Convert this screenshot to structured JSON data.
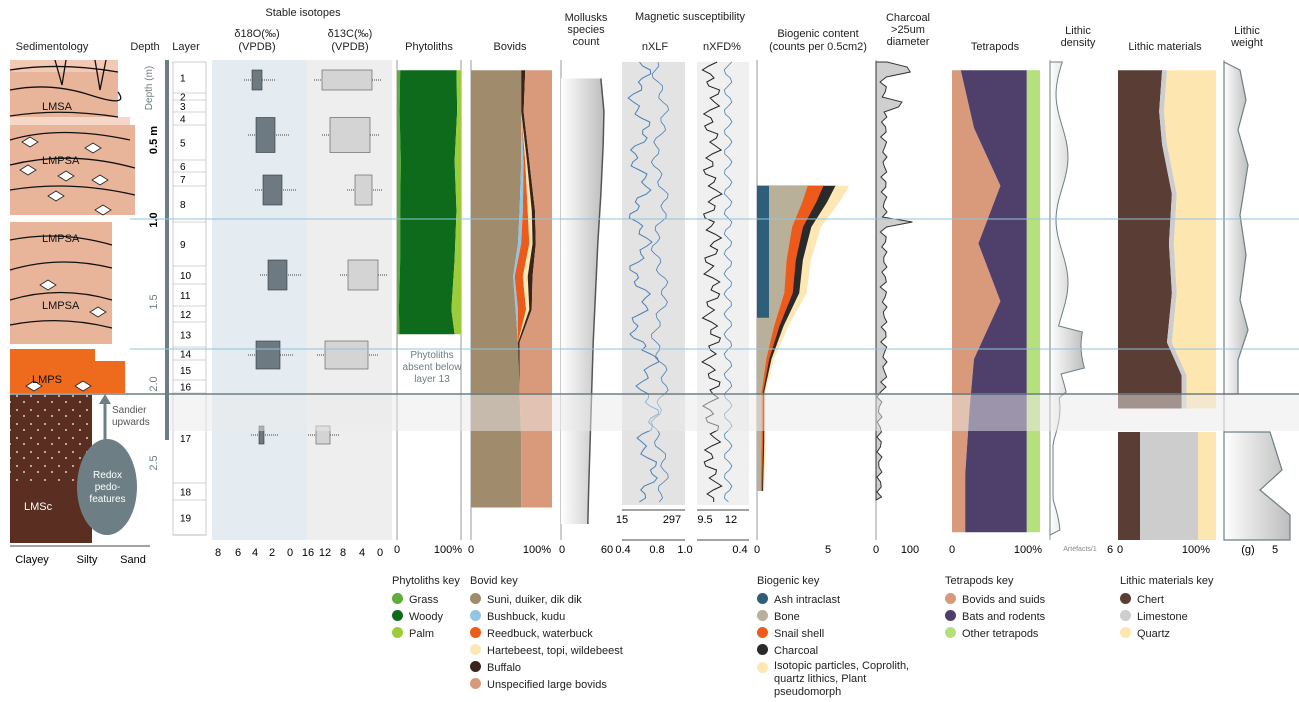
{
  "colors": {
    "grass": "#5fae3a",
    "woody": "#0e6b1c",
    "palm": "#9ccc3a",
    "suni": "#a08b6d",
    "bushbuck": "#8fc6e3",
    "reedbuck": "#ee5a19",
    "hartebeest": "#fde7b4",
    "buffalo": "#3b241a",
    "unspecified": "#d99a7c",
    "ash": "#2e5f7a",
    "bone": "#b9b09a",
    "snail": "#ee5a19",
    "charcoal": "#2a2a2a",
    "isotopic": "#fde7b4",
    "bovids_suids": "#d99a7c",
    "bats": "#4f3f6b",
    "other_tetra": "#b6e07c",
    "chert": "#5a3d34",
    "limestone": "#cdcdcd",
    "quartz": "#fde6b0",
    "sediment_pink": "#e8b49a",
    "sediment_orange": "#ee6a1c",
    "sediment_brown": "#5a2e20"
  },
  "headers": {
    "sedimentology": "Sedimentology",
    "depth": "Depth",
    "layer": "Layer",
    "stable_isotopes": "Stable isotopes",
    "d18o": "δ18O(‰)",
    "d18o_sub": "(VPDB)",
    "d13c": "δ13C(‰)",
    "d13c_sub": "(VPDB)",
    "phytoliths": "Phytoliths",
    "bovids": "Bovids",
    "mollusks": "Mollusks species count",
    "magnetic": "Magnetic susceptibility",
    "nxlf": "nXLF",
    "nxfd": "nXFD%",
    "biogenic": "Biogenic content",
    "biogenic_sub": "(counts per 0.5cm2)",
    "charcoal": "Charcoal >25um diameter",
    "tetrapods": "Tetrapods",
    "lithic_density": "Lithic density",
    "lithic_materials": "Lithic materials",
    "lithic_weight": "Lithic weight"
  },
  "sedimentology": {
    "units": [
      "LMSA",
      "LMPSA",
      "LMPSA",
      "LMPSA",
      "LMPS",
      "LMSc"
    ],
    "sandier": "Sandier upwards",
    "redox": "Redox pedo-features",
    "axis": [
      "Clayey",
      "Silty",
      "Sand"
    ]
  },
  "depth_axis": {
    "label": "Depth (m)",
    "ticks": [
      "0.5 m",
      "1.0",
      "1.5",
      "2.0",
      "2.5"
    ]
  },
  "layers": [
    "1",
    "2",
    "3",
    "4",
    "5",
    "6",
    "7",
    "8",
    "9",
    "10",
    "11",
    "12",
    "13",
    "14",
    "15",
    "16",
    "17",
    "18",
    "19"
  ],
  "phytolith_note": "Phytoliths absent below layer 13",
  "axis_labels": {
    "d18o": [
      "8",
      "6",
      "4",
      "2",
      "0"
    ],
    "d13c": [
      "16",
      "12",
      "8",
      "4",
      "0"
    ],
    "phyto": [
      "0",
      "100%"
    ],
    "bovids": [
      "0",
      "100%"
    ],
    "mollusks": [
      "0",
      "60"
    ],
    "nxlf_top": [
      "15",
      "297"
    ],
    "nxlf_bottom": [
      "0.4",
      "0.8",
      "1.0"
    ],
    "nxfd_top": [
      "9.5",
      "12"
    ],
    "nxfd_bottom": [
      "0.4"
    ],
    "biogenic": [
      "0",
      "5"
    ],
    "charcoal": [
      "0",
      "100"
    ],
    "tetrapods": [
      "0",
      "100%"
    ],
    "lithic_density": [
      "Artefacts/1",
      "6"
    ],
    "lithic_materials": [
      "0",
      "100%"
    ],
    "lithic_weight": [
      "(g)",
      "5"
    ]
  },
  "keys": {
    "phyto_key": {
      "title": "Phytoliths key",
      "items": [
        "Grass",
        "Woody",
        "Palm"
      ]
    },
    "bovid_key": {
      "title": "Bovid key",
      "items": [
        "Suni, duiker, dik dik",
        "Bushbuck, kudu",
        "Reedbuck, waterbuck",
        "Hartebeest, topi, wildebeest",
        "Buffalo",
        "Unspecified large bovids"
      ]
    },
    "biogenic_key": {
      "title": "Biogenic key",
      "items": [
        "Ash intraclast",
        "Bone",
        "Snail shell",
        "Charcoal",
        "Isotopic particles, Coprolith, quartz lithics, Plant pseudomorph"
      ]
    },
    "tetrapods_key": {
      "title": "Tetrapods key",
      "items": [
        "Bovids and suids",
        "Bats and rodents",
        "Other tetrapods"
      ]
    },
    "lithic_key": {
      "title": "Lithic materials key",
      "items": [
        "Chert",
        "Limestone",
        "Quartz"
      ]
    }
  },
  "chart_data": [
    {
      "type": "area",
      "title": "Phytoliths",
      "depth_m": [
        0.05,
        0.3,
        0.6,
        0.9,
        1.2,
        1.5,
        1.65
      ],
      "series": [
        {
          "name": "Grass",
          "values": [
            5,
            4,
            6,
            5,
            5,
            3,
            4
          ]
        },
        {
          "name": "Woody",
          "values": [
            88,
            90,
            84,
            88,
            85,
            82,
            86
          ]
        },
        {
          "name": "Palm",
          "values": [
            7,
            6,
            10,
            7,
            10,
            15,
            10
          ]
        }
      ],
      "xlim": [
        0,
        100
      ]
    },
    {
      "type": "area",
      "title": "Bovids",
      "depth_m": [
        0.05,
        0.3,
        0.6,
        0.9,
        1.1,
        1.3,
        1.5,
        1.7,
        2.0,
        2.3,
        2.7
      ],
      "series": [
        {
          "name": "Suni, duiker, dik dik",
          "values": [
            62,
            62,
            62,
            60,
            58,
            52,
            55,
            58,
            60,
            62,
            62
          ]
        },
        {
          "name": "Bushbuck, kudu",
          "values": [
            0,
            0,
            3,
            4,
            4,
            2,
            3,
            0,
            0,
            0,
            0
          ]
        },
        {
          "name": "Reedbuck, waterbuck",
          "values": [
            0,
            0,
            2,
            6,
            10,
            10,
            10,
            0,
            0,
            0,
            0
          ]
        },
        {
          "name": "Hartebeest, topi, wildebeest",
          "values": [
            0,
            0,
            2,
            5,
            4,
            6,
            4,
            0,
            0,
            0,
            0
          ]
        },
        {
          "name": "Buffalo",
          "values": [
            5,
            3,
            3,
            4,
            4,
            6,
            3,
            2,
            0,
            0,
            0
          ]
        },
        {
          "name": "Unspecified large bovids",
          "values": [
            33,
            35,
            28,
            21,
            20,
            24,
            25,
            40,
            40,
            38,
            38
          ]
        }
      ],
      "xlim": [
        0,
        100
      ]
    },
    {
      "type": "line",
      "title": "Mollusks species count",
      "depth_m": [
        0.1,
        0.3,
        0.5,
        0.8,
        1.1,
        1.4,
        1.7,
        2.0,
        2.3,
        2.6,
        2.8
      ],
      "values": [
        52,
        56,
        55,
        52,
        48,
        45,
        42,
        40,
        38,
        36,
        35
      ],
      "xlim": [
        0,
        60
      ]
    },
    {
      "type": "line",
      "title": "Biogenic content",
      "depth_m": [
        0.75,
        0.85,
        1.0,
        1.2,
        1.4,
        1.6,
        1.8,
        2.0,
        2.3,
        2.6
      ],
      "series": [
        {
          "name": "Total",
          "values": [
            6.5,
            5.8,
            4.5,
            3.8,
            3.5,
            2.2,
            1.2,
            0.6,
            0.6,
            0.5
          ]
        }
      ],
      "xlim": [
        0,
        5
      ]
    },
    {
      "type": "area",
      "title": "Tetrapods",
      "depth_m": [
        0.05,
        0.4,
        0.75,
        1.1,
        1.45,
        1.8,
        2.1,
        2.5,
        2.85
      ],
      "series": [
        {
          "name": "Bovids and suids",
          "values": [
            10,
            25,
            55,
            30,
            55,
            25,
            20,
            15,
            15
          ]
        },
        {
          "name": "Bats and rodents",
          "values": [
            75,
            60,
            30,
            55,
            30,
            60,
            65,
            70,
            70
          ]
        },
        {
          "name": "Other tetrapods",
          "values": [
            15,
            15,
            15,
            15,
            15,
            15,
            15,
            15,
            15
          ]
        }
      ],
      "xlim": [
        0,
        100
      ]
    },
    {
      "type": "area",
      "title": "Lithic materials",
      "depth_m": [
        0.05,
        0.3,
        0.5,
        0.8,
        1.1,
        1.4,
        1.7,
        1.9,
        2.1
      ],
      "series": [
        {
          "name": "Chert",
          "values": [
            45,
            42,
            45,
            55,
            52,
            55,
            50,
            65,
            65
          ]
        },
        {
          "name": "Limestone",
          "values": [
            5,
            5,
            5,
            5,
            5,
            5,
            5,
            5,
            5
          ]
        },
        {
          "name": "Quartz",
          "values": [
            50,
            53,
            50,
            40,
            43,
            40,
            45,
            30,
            30
          ]
        }
      ],
      "xlim": [
        0,
        100
      ]
    }
  ]
}
